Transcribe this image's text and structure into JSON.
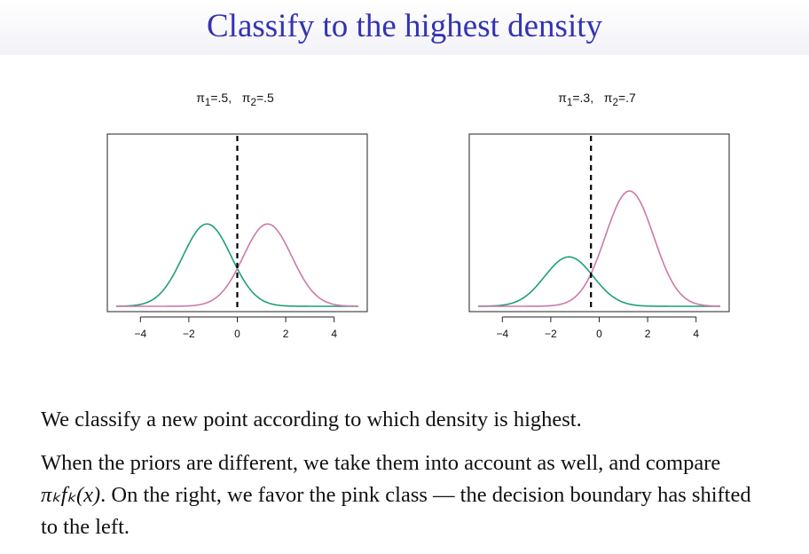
{
  "slide": {
    "title": "Classify to the highest density",
    "paragraph1": "We classify a new point according to which density is highest.",
    "paragraph2_part1": "When the priors are different, we take them into account as well, and compare ",
    "paragraph2_math": "πₖfₖ(x)",
    "paragraph2_part2": ". On the right, we favor the pink class — the decision boundary has shifted to the left."
  },
  "chart_data": [
    {
      "type": "line",
      "title": "π1=.5,   π2=.5",
      "title_parts": {
        "pi": "π",
        "sub1": "1",
        "val1": "=.5,   ",
        "sub2": "2",
        "val2": "=.5"
      },
      "xlim": [
        -5,
        5
      ],
      "ylim": [
        0,
        0.4
      ],
      "x_ticks": [
        -4,
        -2,
        0,
        2,
        4
      ],
      "series": [
        {
          "color": "#1e9e7a",
          "mean": -1.25,
          "sd": 1,
          "prior": 0.5
        },
        {
          "color": "#cc79a7",
          "mean": 1.25,
          "sd": 1,
          "prior": 0.5
        }
      ],
      "decision_boundary": 0
    },
    {
      "type": "line",
      "title": "π1=.3,   π2=.7",
      "title_parts": {
        "pi": "π",
        "sub1": "1",
        "val1": "=.3,   ",
        "sub2": "2",
        "val2": "=.7"
      },
      "xlim": [
        -5,
        5
      ],
      "ylim": [
        0,
        0.4
      ],
      "x_ticks": [
        -4,
        -2,
        0,
        2,
        4
      ],
      "series": [
        {
          "color": "#1e9e7a",
          "mean": -1.25,
          "sd": 1,
          "prior": 0.3
        },
        {
          "color": "#cc79a7",
          "mean": 1.25,
          "sd": 1,
          "prior": 0.7
        }
      ],
      "decision_boundary": -0.34
    }
  ]
}
